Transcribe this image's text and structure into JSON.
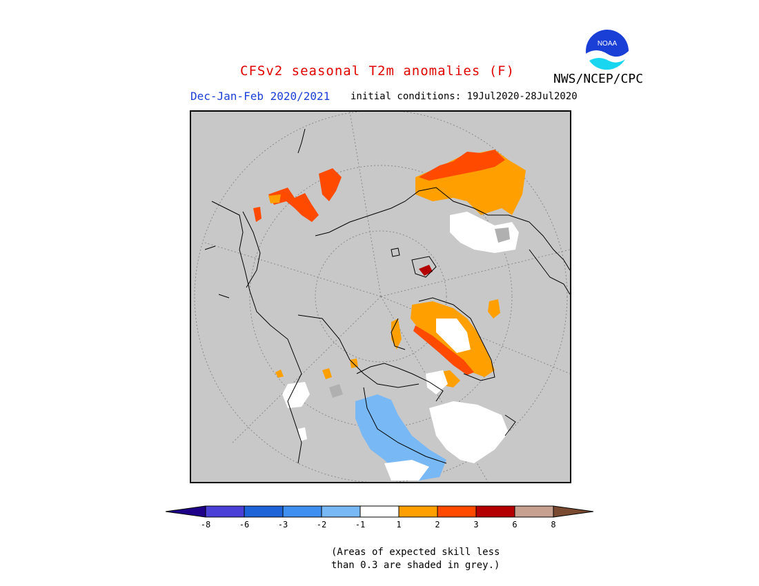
{
  "header": {
    "title": "CFSv2 seasonal T2m anomalies (F)",
    "agency": "NWS/NCEP/CPC",
    "season": "Dec-Jan-Feb 2020/2021",
    "initial_conditions": "initial conditions: 19Jul2020-28Jul2020",
    "logo_text": "NOAA"
  },
  "map": {
    "projection": "polar stereographic (north)",
    "background_color": "#c8c8c8",
    "regions": [
      {
        "name": "northern-europe-warm",
        "category": "2"
      },
      {
        "name": "scandinavia-warm",
        "category": "1"
      },
      {
        "name": "siberia-warm",
        "category": "1"
      },
      {
        "name": "siberia-strong-warm",
        "category": "2"
      },
      {
        "name": "greenland-warm",
        "category": "1"
      },
      {
        "name": "canada-cold",
        "category": "-2"
      },
      {
        "name": "eastern-siberia-neutral",
        "category": "-1"
      }
    ]
  },
  "legend": {
    "bins": [
      {
        "label": "",
        "color": "#1d0087"
      },
      {
        "label": "-8",
        "color": "#4a3fd6"
      },
      {
        "label": "-6",
        "color": "#1f63d8"
      },
      {
        "label": "-3",
        "color": "#3f8ff0"
      },
      {
        "label": "-2",
        "color": "#78b8f5"
      },
      {
        "label": "-1",
        "color": "#ffffff"
      },
      {
        "label": "1",
        "color": "#ffa000"
      },
      {
        "label": "2",
        "color": "#ff4a00"
      },
      {
        "label": "3",
        "color": "#b40000"
      },
      {
        "label": "6",
        "color": "#c8a090"
      },
      {
        "label": "8",
        "color": "#7a4a30"
      }
    ]
  },
  "footnote": {
    "line1": "(Areas of expected skill less",
    "line2": "than 0.3 are shaded in grey.)"
  }
}
